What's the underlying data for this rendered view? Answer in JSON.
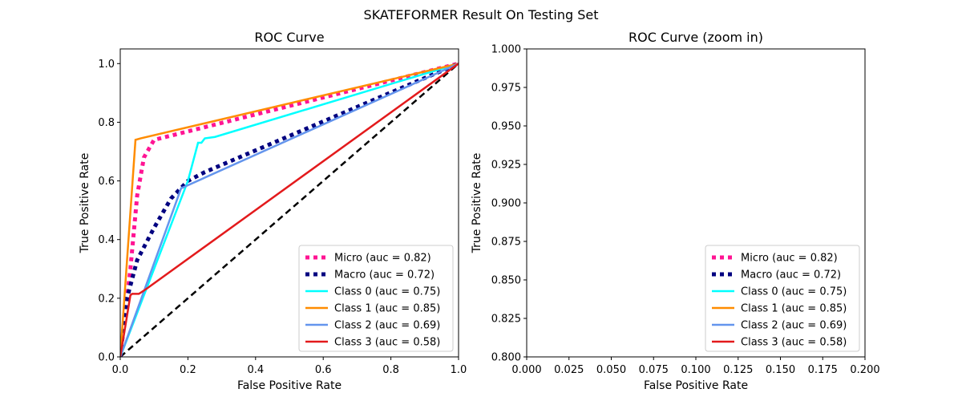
{
  "figure_title": "SKATEFORMER Result On Testing Set",
  "colors": {
    "micro": "#ff1493",
    "macro": "#000080",
    "class0": "#00ffff",
    "class1": "#ff8c00",
    "class2": "#6495ed",
    "class3": "#e31a1c",
    "chance": "#000000"
  },
  "chart_data": [
    {
      "type": "line",
      "title": "ROC Curve",
      "xlabel": "False Positive Rate",
      "ylabel": "True Positive Rate",
      "xlim": [
        0.0,
        1.0
      ],
      "ylim": [
        0.0,
        1.05
      ],
      "xticks": [
        "0.0",
        "0.2",
        "0.4",
        "0.6",
        "0.8",
        "1.0"
      ],
      "yticks": [
        "0.0",
        "0.2",
        "0.4",
        "0.6",
        "0.8",
        "1.0"
      ],
      "legend_position": "lower-right",
      "chance_line": {
        "x": [
          0,
          1
        ],
        "y": [
          0,
          1
        ],
        "style": "dashed"
      },
      "series": [
        {
          "name": "Micro (auc = 0.82)",
          "color": "micro",
          "style": "dotted",
          "x": [
            0,
            0.03,
            0.05,
            0.07,
            0.1,
            1.0
          ],
          "y": [
            0,
            0.3,
            0.55,
            0.68,
            0.74,
            1.0
          ]
        },
        {
          "name": "Macro (auc = 0.72)",
          "color": "macro",
          "style": "dotted",
          "x": [
            0,
            0.02,
            0.05,
            0.1,
            0.15,
            0.2,
            0.25,
            1.0
          ],
          "y": [
            0,
            0.2,
            0.33,
            0.44,
            0.54,
            0.6,
            0.63,
            1.0
          ]
        },
        {
          "name": "Class 0 (auc = 0.75)",
          "color": "class0",
          "style": "solid",
          "x": [
            0,
            0.05,
            0.1,
            0.15,
            0.2,
            0.23,
            0.24,
            0.25,
            0.28,
            1.0
          ],
          "y": [
            0,
            0.15,
            0.3,
            0.45,
            0.6,
            0.73,
            0.73,
            0.745,
            0.75,
            1.0
          ]
        },
        {
          "name": "Class 1 (auc = 0.85)",
          "color": "class1",
          "style": "solid",
          "x": [
            0,
            0.045,
            0.06,
            1.0
          ],
          "y": [
            0,
            0.74,
            0.745,
            1.0
          ]
        },
        {
          "name": "Class 2 (auc = 0.69)",
          "color": "class2",
          "style": "solid",
          "x": [
            0,
            0.18,
            0.19,
            1.0
          ],
          "y": [
            0,
            0.575,
            0.58,
            1.0
          ]
        },
        {
          "name": "Class 3 (auc = 0.58)",
          "color": "class3",
          "style": "solid",
          "x": [
            0,
            0.03,
            0.035,
            0.055,
            0.075,
            1.0
          ],
          "y": [
            0,
            0.21,
            0.215,
            0.215,
            0.23,
            1.0
          ]
        }
      ]
    },
    {
      "type": "line",
      "title": "ROC Curve (zoom in)",
      "xlabel": "False Positive Rate",
      "ylabel": "True Positive Rate",
      "xlim": [
        0.0,
        0.2
      ],
      "ylim": [
        0.8,
        1.0
      ],
      "xticks": [
        "0.000",
        "0.025",
        "0.050",
        "0.075",
        "0.100",
        "0.125",
        "0.150",
        "0.175",
        "0.200"
      ],
      "yticks": [
        "0.800",
        "0.825",
        "0.850",
        "0.875",
        "0.900",
        "0.925",
        "0.950",
        "0.975",
        "1.000"
      ],
      "legend_position": "lower-right",
      "series": [
        {
          "name": "Micro (auc = 0.82)",
          "color": "micro",
          "style": "dotted"
        },
        {
          "name": "Macro (auc = 0.72)",
          "color": "macro",
          "style": "dotted"
        },
        {
          "name": "Class 0 (auc = 0.75)",
          "color": "class0",
          "style": "solid"
        },
        {
          "name": "Class 1 (auc = 0.85)",
          "color": "class1",
          "style": "solid"
        },
        {
          "name": "Class 2 (auc = 0.69)",
          "color": "class2",
          "style": "solid"
        },
        {
          "name": "Class 3 (auc = 0.58)",
          "color": "class3",
          "style": "solid"
        }
      ]
    }
  ]
}
